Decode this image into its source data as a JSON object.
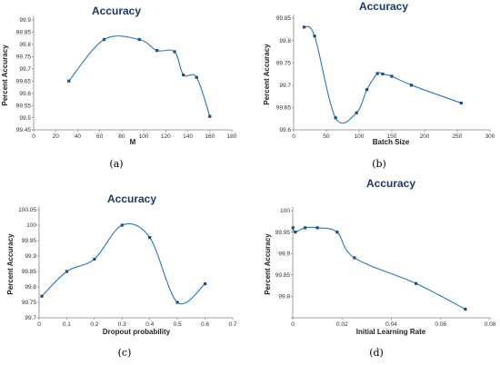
{
  "chart_data": [
    {
      "type": "line",
      "panel_label": "(a)",
      "title": "Accuracy",
      "xlabel": "M",
      "ylabel": "Percent Accuracy",
      "xlim": [
        0,
        180
      ],
      "ylim": [
        99.45,
        99.9
      ],
      "xticks": [
        0,
        20,
        40,
        60,
        80,
        100,
        120,
        140,
        160,
        180
      ],
      "yticks": [
        99.45,
        99.5,
        99.55,
        99.6,
        99.65,
        99.7,
        99.75,
        99.8,
        99.85,
        99.9
      ],
      "xtick_labels": [
        "0",
        "20",
        "40",
        "60",
        "80",
        "100",
        "120",
        "140",
        "160",
        "180"
      ],
      "ytick_labels": [
        "99.45",
        "99.5",
        "99.55",
        "99.6",
        "99.65",
        "99.7",
        "99.75",
        "99.8",
        "99.85",
        "99.9"
      ],
      "grid": false,
      "series": [
        {
          "x": [
            32,
            64,
            96,
            112,
            128,
            136,
            148,
            160
          ],
          "y": [
            99.65,
            99.82,
            99.82,
            99.775,
            99.77,
            99.675,
            99.665,
            99.505
          ]
        }
      ]
    },
    {
      "type": "line",
      "panel_label": "(b)",
      "title": "Accuracy",
      "xlabel": "Batch Size",
      "ylabel": "Percent Accuracy",
      "xlim": [
        0,
        300
      ],
      "ylim": [
        99.6,
        99.85
      ],
      "xticks": [
        0,
        50,
        100,
        150,
        200,
        250,
        300
      ],
      "yticks": [
        99.6,
        99.65,
        99.7,
        99.75,
        99.8,
        99.85
      ],
      "xtick_labels": [
        "0",
        "50",
        "100",
        "150",
        "200",
        "250",
        "300"
      ],
      "ytick_labels": [
        "99.6",
        "99.65",
        "99.7",
        "99.75",
        "99.8",
        "99.85"
      ],
      "grid": false,
      "series": [
        {
          "x": [
            16,
            32,
            64,
            96,
            112,
            128,
            136,
            150,
            180,
            256
          ],
          "y": [
            99.83,
            99.81,
            99.627,
            99.638,
            99.69,
            99.726,
            99.725,
            99.72,
            99.7,
            99.66
          ]
        }
      ]
    },
    {
      "type": "line",
      "panel_label": "(c)",
      "title": "Accuracy",
      "xlabel": "Dropout probability",
      "ylabel": "Percent Accuracy",
      "xlim": [
        0,
        0.7
      ],
      "ylim": [
        99.7,
        100.05
      ],
      "xticks": [
        0,
        0.1,
        0.2,
        0.3,
        0.4,
        0.5,
        0.6,
        0.7
      ],
      "yticks": [
        99.7,
        99.75,
        99.8,
        99.85,
        99.9,
        99.95,
        100,
        100.05
      ],
      "xtick_labels": [
        "0",
        "0.1",
        "0.2",
        "0.3",
        "0.4",
        "0.5",
        "0.6",
        "0.7"
      ],
      "ytick_labels": [
        "99.7",
        "99.75",
        "99.8",
        "99.85",
        "99.9",
        "99.95",
        "100",
        "100.05"
      ],
      "grid": false,
      "series": [
        {
          "x": [
            0.01,
            0.1,
            0.2,
            0.3,
            0.4,
            0.5,
            0.6
          ],
          "y": [
            99.77,
            99.85,
            99.89,
            100.0,
            99.96,
            99.75,
            99.81
          ]
        }
      ]
    },
    {
      "type": "line",
      "panel_label": "(d)",
      "title": "Accuracy",
      "xlabel": "Initial Learning Rate",
      "ylabel": "Percent Accuracy",
      "xlim": [
        0,
        0.08
      ],
      "ylim": [
        99.75,
        100
      ],
      "xticks": [
        0,
        0.02,
        0.04,
        0.06,
        0.08
      ],
      "yticks": [
        99.75,
        99.8,
        99.85,
        99.9,
        99.95,
        100
      ],
      "xtick_labels": [
        "0",
        "0.02",
        "0.04",
        "0.06",
        "0.08"
      ],
      "ytick_labels": [
        "",
        "99.8",
        "99.85",
        "99.9",
        "99.95",
        "100"
      ],
      "grid": false,
      "series": [
        {
          "x": [
            0.0001,
            0.001,
            0.005,
            0.01,
            0.018,
            0.025,
            0.05,
            0.07
          ],
          "y": [
            99.96,
            99.95,
            99.96,
            99.96,
            99.95,
            99.89,
            99.83,
            99.77
          ]
        }
      ]
    }
  ]
}
